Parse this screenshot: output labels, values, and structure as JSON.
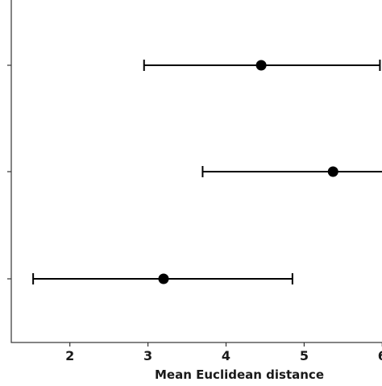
{
  "chart_data": {
    "type": "scatter",
    "title": "",
    "xlabel": "Mean Euclidean distance",
    "ylabel": "",
    "xlim": [
      1.25,
      6.1
    ],
    "xticks": [
      2,
      3,
      4,
      5,
      6
    ],
    "xtick_labels": [
      "2",
      "3",
      "4",
      "5",
      "6"
    ],
    "grid": false,
    "legend": "none",
    "categories": [
      "",
      "",
      ""
    ],
    "points": [
      {
        "mean": 4.45,
        "lower": 2.95,
        "upper": 5.97
      },
      {
        "mean": 5.37,
        "lower": 3.7,
        "upper": 6.1
      },
      {
        "mean": 3.2,
        "lower": 1.53,
        "upper": 4.85
      }
    ],
    "colors": {
      "marker": "#000000",
      "errorbar": "#000000",
      "axis": "#333333"
    }
  }
}
